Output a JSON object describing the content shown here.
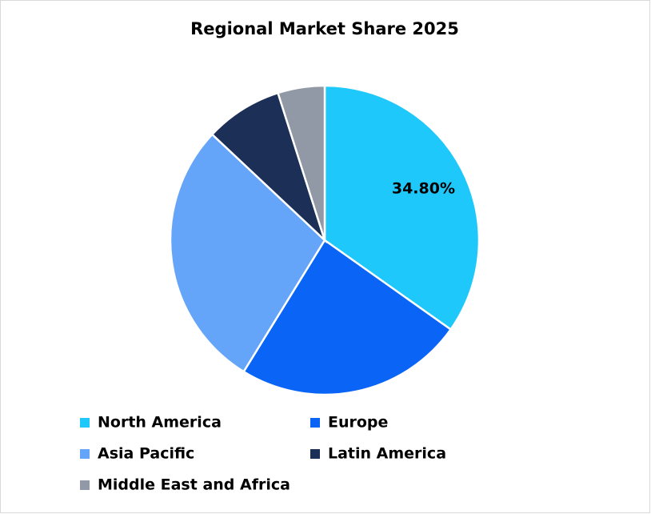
{
  "chart_data": {
    "type": "pie",
    "title": "Regional Market Share 2025",
    "categories": [
      "North America",
      "Europe",
      "Asia Pacific",
      "Latin America",
      "Middle East and Africa"
    ],
    "values": [
      34.8,
      24,
      28.2,
      8.1,
      4.9
    ],
    "value_labels": [
      "34.80%",
      null,
      null,
      null,
      null
    ],
    "colors": [
      "#1ec8fa",
      "#0a64f5",
      "#64a5fa",
      "#1c2f57",
      "#9199a6"
    ],
    "legend": "bottom"
  }
}
